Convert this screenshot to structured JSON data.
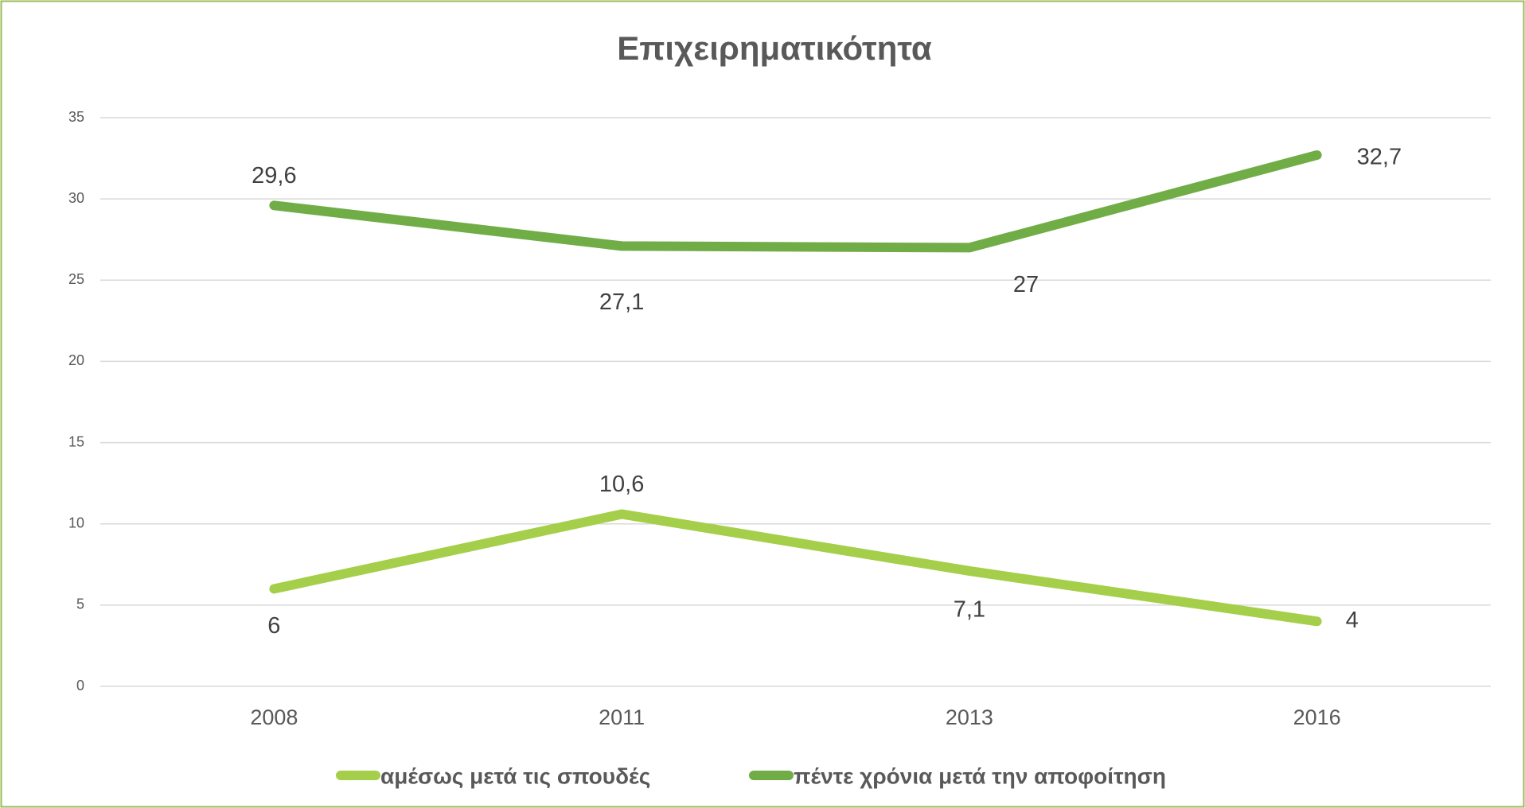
{
  "chart_data": {
    "type": "line",
    "title": "Επιχειρηματικότητα",
    "categories": [
      "2008",
      "2011",
      "2013",
      "2016"
    ],
    "series": [
      {
        "name": "αμέσως μετά τις σπουδές",
        "color": "#a5cf4a",
        "values": [
          6,
          10.6,
          7.1,
          4
        ],
        "value_labels": [
          "6",
          "10,6",
          "7,1",
          "4"
        ]
      },
      {
        "name": "πέντε χρόνια μετά την αποφοίτηση",
        "color": "#70ad47",
        "values": [
          29.6,
          27.1,
          27,
          32.7
        ],
        "value_labels": [
          "29,6",
          "27,1",
          "27",
          "32,7"
        ]
      }
    ],
    "ylim": [
      0,
      35
    ],
    "yticks": [
      0,
      5,
      10,
      15,
      20,
      25,
      30,
      35
    ],
    "grid": true,
    "legend": "bottom"
  }
}
